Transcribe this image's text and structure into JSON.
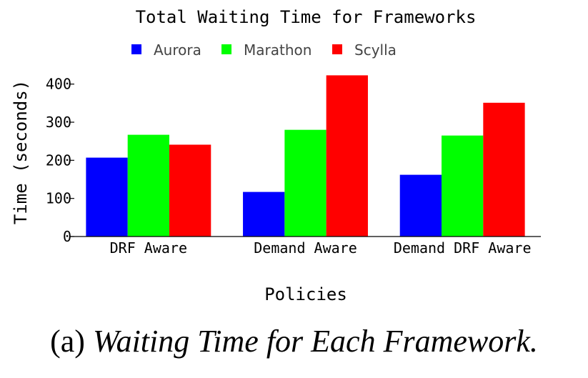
{
  "chart_data": {
    "type": "bar",
    "title": "Total Waiting Time for Frameworks",
    "xlabel": "Policies",
    "ylabel": "Time (seconds)",
    "categories": [
      "DRF Aware",
      "Demand Aware",
      "Demand DRF Aware"
    ],
    "series": [
      {
        "name": "Aurora",
        "color": "#0000ff",
        "values": [
          207,
          117,
          162
        ]
      },
      {
        "name": "Marathon",
        "color": "#00ff00",
        "values": [
          267,
          280,
          265
        ]
      },
      {
        "name": "Scylla",
        "color": "#ff0000",
        "values": [
          241,
          423,
          351
        ]
      }
    ],
    "ylim": [
      0,
      430
    ],
    "yticks": [
      0,
      100,
      200,
      300,
      400
    ],
    "legend_position": "top",
    "grid": false
  },
  "caption": {
    "label": "(a)",
    "text": "Waiting Time for Each Framework."
  }
}
